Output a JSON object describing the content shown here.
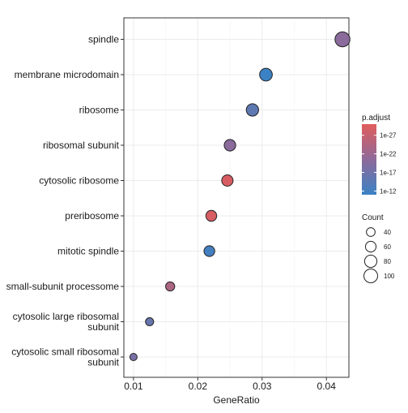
{
  "chart_data": {
    "type": "scatter",
    "xlabel": "GeneRatio",
    "ylabel": "",
    "xlim": [
      0.0085,
      0.0435
    ],
    "x_ticks": [
      0.01,
      0.02,
      0.03,
      0.04
    ],
    "x_tick_labels": [
      "0.01",
      "0.02",
      "0.03",
      "0.04"
    ],
    "grid": true,
    "categories": [
      "spindle",
      "membrane microdomain",
      "ribosome",
      "ribosomal subunit",
      "cytosolic ribosome",
      "preribosome",
      "mitotic spindle",
      "small-subunit processome",
      "cytosolic large ribosomal subunit",
      "cytosolic small ribosomal subunit"
    ],
    "category_lines": [
      [
        "spindle"
      ],
      [
        "membrane microdomain"
      ],
      [
        "ribosome"
      ],
      [
        "ribosomal subunit"
      ],
      [
        "cytosolic ribosome"
      ],
      [
        "preribosome"
      ],
      [
        "mitotic spindle"
      ],
      [
        "small-subunit processome"
      ],
      [
        "cytosolic large ribosomal",
        "subunit"
      ],
      [
        "cytosolic small ribosomal",
        "subunit"
      ]
    ],
    "points": [
      {
        "category": "spindle",
        "x": 0.0425,
        "count": 118,
        "neglog_padj": 20
      },
      {
        "category": "membrane microdomain",
        "x": 0.0306,
        "count": 85,
        "neglog_padj": 11
      },
      {
        "category": "ribosome",
        "x": 0.0285,
        "count": 80,
        "neglog_padj": 15
      },
      {
        "category": "ribosomal subunit",
        "x": 0.025,
        "count": 70,
        "neglog_padj": 20
      },
      {
        "category": "cytosolic ribosome",
        "x": 0.0246,
        "count": 68,
        "neglog_padj": 29
      },
      {
        "category": "preribosome",
        "x": 0.0221,
        "count": 62,
        "neglog_padj": 29
      },
      {
        "category": "mitotic spindle",
        "x": 0.0218,
        "count": 61,
        "neglog_padj": 12
      },
      {
        "category": "small-subunit processome",
        "x": 0.0157,
        "count": 44,
        "neglog_padj": 24
      },
      {
        "category": "cytosolic large ribosomal subunit",
        "x": 0.0125,
        "count": 35,
        "neglog_padj": 16
      },
      {
        "category": "cytosolic small ribosomal subunit",
        "x": 0.01,
        "count": 28,
        "neglog_padj": 18
      }
    ],
    "color_legend": {
      "title": "p.adjust",
      "range_neglog": [
        11,
        30
      ],
      "labels": [
        "1e-27",
        "1e-22",
        "1e-17",
        "1e-12"
      ],
      "label_values_neglog": [
        27,
        22,
        17,
        12
      ],
      "low_color": "#E05C5C",
      "high_color": "#3B82C4"
    },
    "size_legend": {
      "title": "Count",
      "values": [
        40,
        60,
        80,
        100
      ],
      "labels": [
        "40",
        "60",
        "80",
        "100"
      ]
    }
  }
}
